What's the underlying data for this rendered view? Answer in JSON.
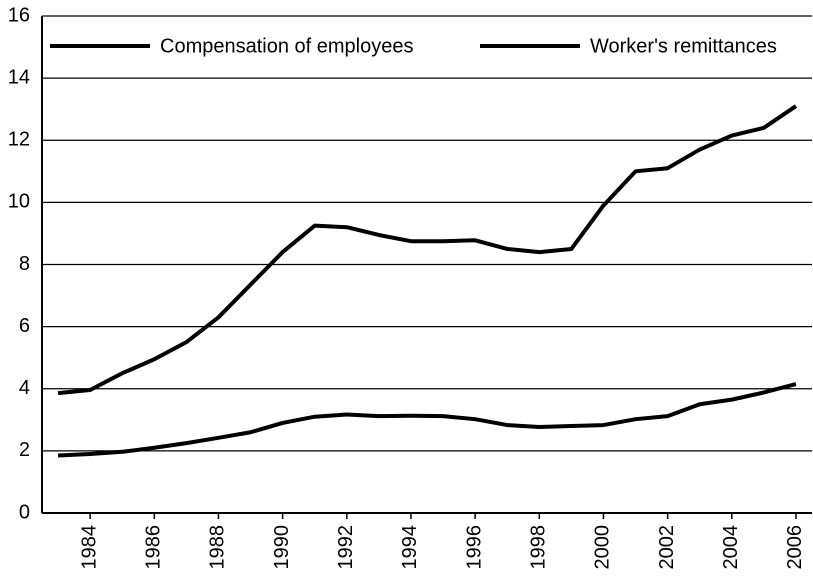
{
  "chart_data": {
    "type": "line",
    "x": [
      1983,
      1984,
      1985,
      1986,
      1987,
      1988,
      1989,
      1990,
      1991,
      1992,
      1993,
      1994,
      1995,
      1996,
      1997,
      1998,
      1999,
      2000,
      2001,
      2002,
      2003,
      2004,
      2005,
      2006
    ],
    "series": [
      {
        "name": "Compensation of employees",
        "color": "#000000",
        "values": [
          3.86,
          3.96,
          4.5,
          4.95,
          5.5,
          6.3,
          7.35,
          8.4,
          9.25,
          9.2,
          8.95,
          8.75,
          8.75,
          8.78,
          8.5,
          8.4,
          8.5,
          9.9,
          11.0,
          11.1,
          11.7,
          12.15,
          12.4,
          13.1
        ]
      },
      {
        "name": "Worker's remittances",
        "color": "#000000",
        "values": [
          1.85,
          1.9,
          1.97,
          2.1,
          2.25,
          2.42,
          2.6,
          2.9,
          3.1,
          3.17,
          3.12,
          3.13,
          3.12,
          3.02,
          2.83,
          2.77,
          2.8,
          2.83,
          3.02,
          3.12,
          3.5,
          3.65,
          3.88,
          4.15
        ]
      }
    ],
    "xlim": [
      1982.5,
      2006.5
    ],
    "xticks": [
      1984,
      1986,
      1988,
      1990,
      1992,
      1994,
      1996,
      1998,
      2000,
      2002,
      2004,
      2006
    ],
    "ylim": [
      0,
      16
    ],
    "yticks": [
      0,
      2,
      4,
      6,
      8,
      10,
      12,
      14,
      16
    ],
    "grid": true,
    "legend": "top"
  }
}
